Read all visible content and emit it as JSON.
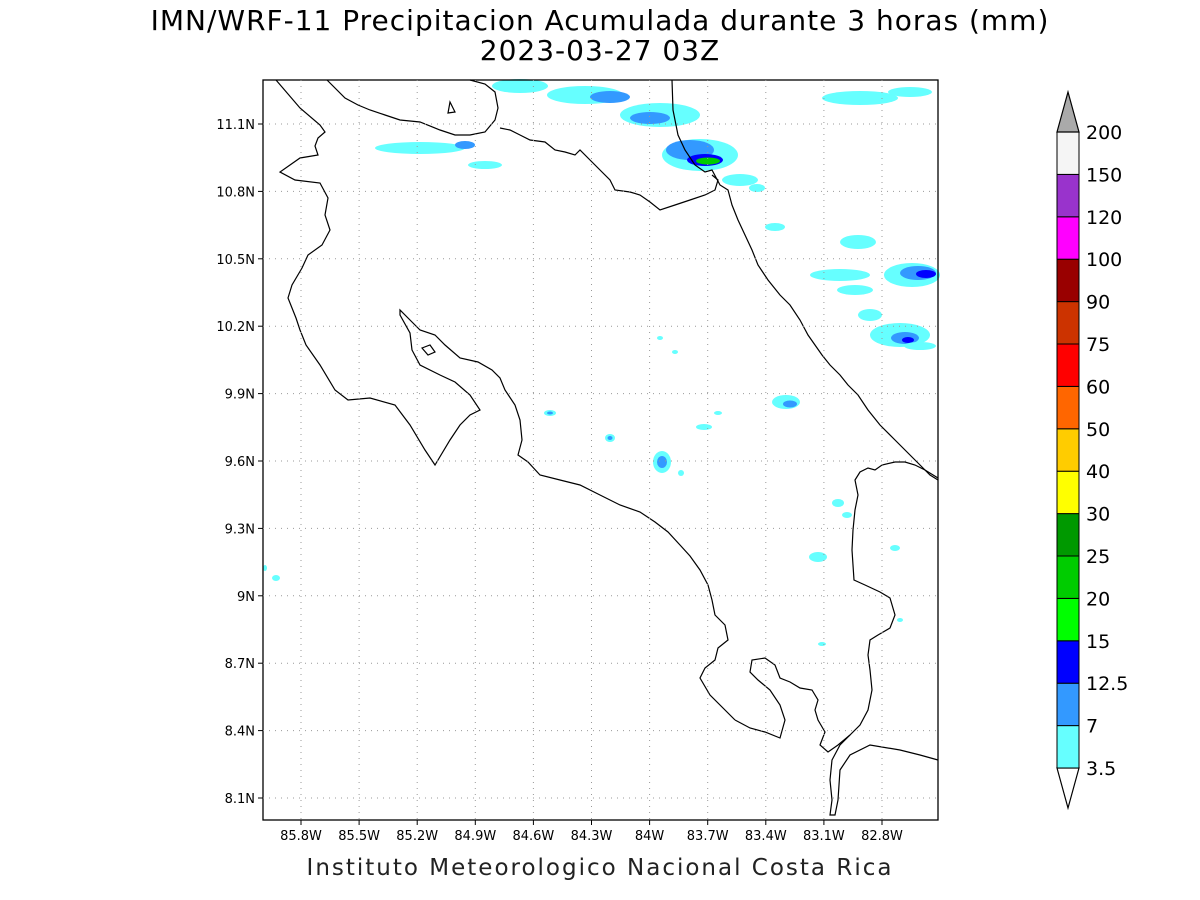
{
  "title_line1": "IMN/WRF-11 Precipitacion Acumulada durante 3 horas (mm)",
  "title_line2": "2023-03-27 03Z",
  "footer": "Instituto Meteorologico Nacional Costa Rica",
  "lat_labels": [
    "11.1N",
    "10.8N",
    "10.5N",
    "10.2N",
    "9.9N",
    "9.6N",
    "9.3N",
    "9N",
    "8.7N",
    "8.4N",
    "8.1N"
  ],
  "lon_labels": [
    "85.8W",
    "85.5W",
    "85.2W",
    "84.9W",
    "84.6W",
    "84.3W",
    "84W",
    "83.7W",
    "83.4W",
    "83.1W",
    "82.8W"
  ],
  "colorbar": {
    "levels": [
      "3.5",
      "7",
      "12.5",
      "15",
      "20",
      "25",
      "30",
      "40",
      "50",
      "60",
      "75",
      "90",
      "100",
      "120",
      "150",
      "200"
    ],
    "colors": [
      "#66ffff",
      "#3399ff",
      "#0000ff",
      "#00ff00",
      "#00cc00",
      "#009900",
      "#ffff00",
      "#ffcc00",
      "#ff6600",
      "#ff0000",
      "#cc3300",
      "#990000",
      "#ff00ff",
      "#9933cc",
      "#f5f5f5",
      "#aaaaaa"
    ]
  }
}
